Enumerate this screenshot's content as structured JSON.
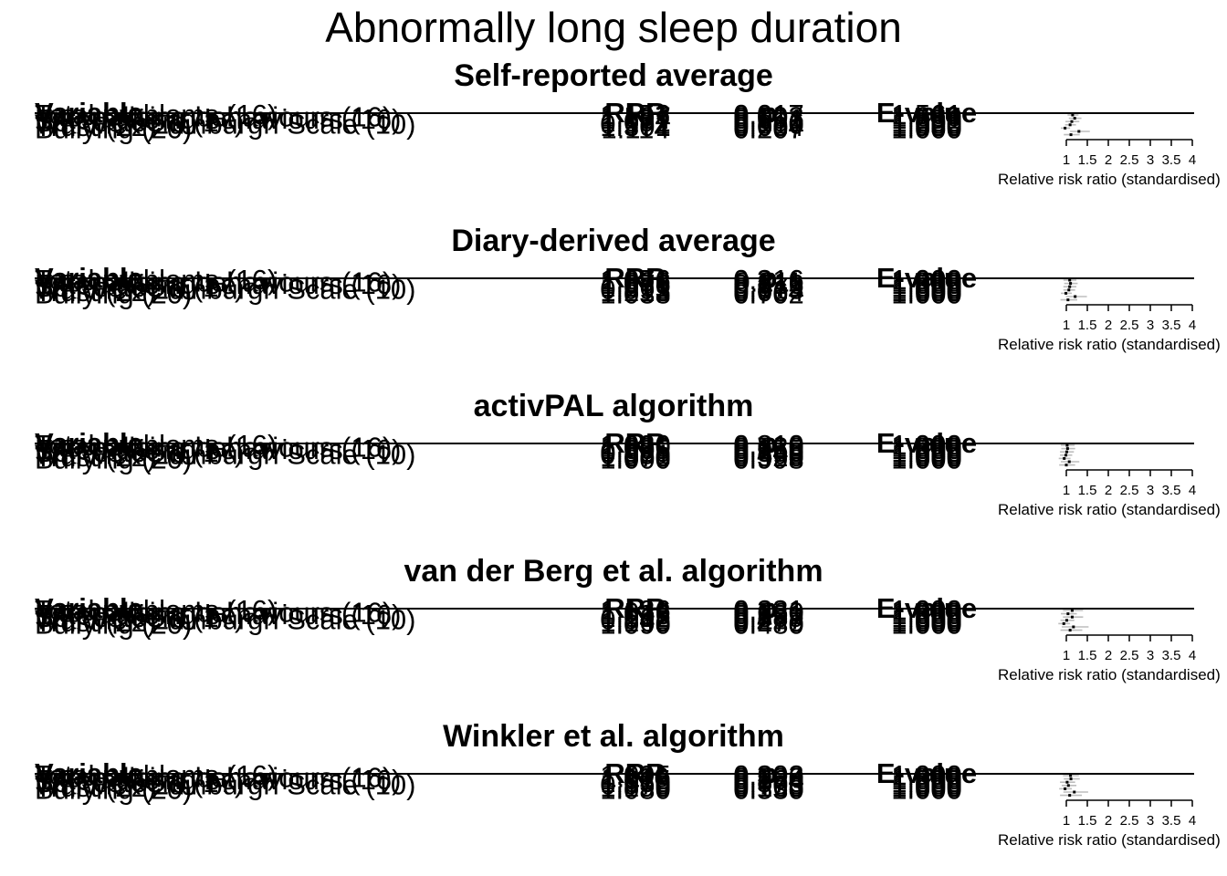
{
  "title": "Abnormally long sleep duration",
  "headers": {
    "variable": "Variable",
    "rrr": "RRR",
    "p": "p",
    "evalue": "E-value"
  },
  "axis": {
    "ticks": [
      "1",
      "1.5",
      "2",
      "2.5",
      "3",
      "3.5",
      "4"
    ],
    "xlabel": "Relative risk ratio (standardised)"
  },
  "chart_data": [
    {
      "type": "forest",
      "title": "Self-reported average",
      "xlabel": "Relative risk ratio (standardised)",
      "xlim": [
        1,
        4
      ],
      "rows": [
        {
          "variable": "Total problems (16)",
          "rrr": "1.152",
          "p": "0.017",
          "evalue": "1.561",
          "est": 1.15,
          "lo": 1.03,
          "hi": 1.29
        },
        {
          "variable": "Internalising behaviours (16)",
          "rrr": "1.197",
          "p": "0.003",
          "evalue": "1.680",
          "est": 1.2,
          "lo": 1.06,
          "hi": 1.36
        },
        {
          "variable": "Externalising behaviours (16)",
          "rrr": "1.134",
          "p": "0.091",
          "evalue": "1.291",
          "est": 1.13,
          "lo": 0.98,
          "hi": 1.31
        },
        {
          "variable": "Self-esteem (17)",
          "rrr": "1.092",
          "p": "0.136",
          "evalue": "1.000",
          "est": 1.09,
          "lo": 0.97,
          "hi": 1.23
        },
        {
          "variable": "Warwick-Edinburgh Scale (10)",
          "rrr": "0.972",
          "p": "0.610",
          "evalue": "1.000",
          "est": 0.97,
          "lo": 0.87,
          "hi": 1.09
        },
        {
          "variable": "Trust (22)",
          "rrr": "1.301",
          "p": "0.004",
          "evalue": "1.930",
          "est": 1.3,
          "lo": 1.09,
          "hi": 1.56
        },
        {
          "variable": "Bullying (20)",
          "rrr": "1.114",
          "p": "0.207",
          "evalue": "1.000",
          "est": 1.11,
          "lo": 0.94,
          "hi": 1.32
        }
      ]
    },
    {
      "type": "forest",
      "title": "Diary-derived average",
      "xlabel": "Relative risk ratio (standardised)",
      "xlim": [
        1,
        4
      ],
      "rows": [
        {
          "variable": "Total problems (16)",
          "rrr": "1.076",
          "p": "0.316",
          "evalue": "1.000",
          "est": 1.08,
          "lo": 0.93,
          "hi": 1.24
        },
        {
          "variable": "Internalising behaviours (16)",
          "rrr": "1.098",
          "p": "0.211",
          "evalue": "1.000",
          "est": 1.1,
          "lo": 0.95,
          "hi": 1.27
        },
        {
          "variable": "Externalising behaviours (16)",
          "rrr": "1.076",
          "p": "0.316",
          "evalue": "1.000",
          "est": 1.08,
          "lo": 0.93,
          "hi": 1.24
        },
        {
          "variable": "Self-esteem (17)",
          "rrr": "1.061",
          "p": "0.372",
          "evalue": "1.000",
          "est": 1.06,
          "lo": 0.93,
          "hi": 1.21
        },
        {
          "variable": "Warwick-Edinburgh Scale (10)",
          "rrr": "0.993",
          "p": "0.913",
          "evalue": "1.000",
          "est": 0.99,
          "lo": 0.87,
          "hi": 1.13
        },
        {
          "variable": "Trust (22)",
          "rrr": "1.213",
          "p": "0.064",
          "evalue": "1.000",
          "est": 1.21,
          "lo": 0.99,
          "hi": 1.49
        },
        {
          "variable": "Bullying (20)",
          "rrr": "1.038",
          "p": "0.702",
          "evalue": "1.000",
          "est": 1.04,
          "lo": 0.86,
          "hi": 1.26
        }
      ]
    },
    {
      "type": "forest",
      "title": "activPAL algorithm",
      "xlabel": "Relative risk ratio (standardised)",
      "xlim": [
        1,
        4
      ],
      "rows": [
        {
          "variable": "Total problems (16)",
          "rrr": "1.020",
          "p": "0.810",
          "evalue": "1.000",
          "est": 1.02,
          "lo": 0.87,
          "hi": 1.2
        },
        {
          "variable": "Internalising behaviours (16)",
          "rrr": "1.030",
          "p": "0.720",
          "evalue": "1.000",
          "est": 1.03,
          "lo": 0.88,
          "hi": 1.21
        },
        {
          "variable": "Externalising behaviours (16)",
          "rrr": "1.005",
          "p": "0.955",
          "evalue": "1.000",
          "est": 1.01,
          "lo": 0.85,
          "hi": 1.18
        },
        {
          "variable": "Self-esteem (17)",
          "rrr": "0.985",
          "p": "0.840",
          "evalue": "1.000",
          "est": 0.99,
          "lo": 0.85,
          "hi": 1.14
        },
        {
          "variable": "Warwick-Edinburgh Scale (10)",
          "rrr": "0.951",
          "p": "0.493",
          "evalue": "1.000",
          "est": 0.95,
          "lo": 0.82,
          "hi": 1.1
        },
        {
          "variable": "Trust (22)",
          "rrr": "1.070",
          "p": "0.520",
          "evalue": "1.000",
          "est": 1.07,
          "lo": 0.87,
          "hi": 1.31
        },
        {
          "variable": "Bullying (20)",
          "rrr": "1.000",
          "p": "0.998",
          "evalue": "1.000",
          "est": 1.0,
          "lo": 0.83,
          "hi": 1.21
        }
      ]
    },
    {
      "type": "forest",
      "title": "van der Berg et al. algorithm",
      "xlabel": "Relative risk ratio (standardised)",
      "xlim": [
        1,
        4
      ],
      "rows": [
        {
          "variable": "Total problems (16)",
          "rrr": "1.136",
          "p": "0.231",
          "evalue": "1.000",
          "est": 1.14,
          "lo": 0.92,
          "hi": 1.4
        },
        {
          "variable": "Internalising behaviours (16)",
          "rrr": "1.042",
          "p": "0.660",
          "evalue": "1.000",
          "est": 1.04,
          "lo": 0.87,
          "hi": 1.25
        },
        {
          "variable": "Externalising behaviours (16)",
          "rrr": "1.136",
          "p": "0.231",
          "evalue": "1.000",
          "est": 1.14,
          "lo": 0.92,
          "hi": 1.4
        },
        {
          "variable": "Self-esteem (17)",
          "rrr": "1.012",
          "p": "0.889",
          "evalue": "1.000",
          "est": 1.01,
          "lo": 0.86,
          "hi": 1.19
        },
        {
          "variable": "Warwick-Edinburgh Scale (10)",
          "rrr": "0.942",
          "p": "0.427",
          "evalue": "1.000",
          "est": 0.94,
          "lo": 0.81,
          "hi": 1.09
        },
        {
          "variable": "Trust (22)",
          "rrr": "1.165",
          "p": "0.275",
          "evalue": "1.000",
          "est": 1.17,
          "lo": 0.89,
          "hi": 1.53
        },
        {
          "variable": "Bullying (20)",
          "rrr": "1.090",
          "p": "0.480",
          "evalue": "1.000",
          "est": 1.09,
          "lo": 0.86,
          "hi": 1.38
        }
      ]
    },
    {
      "type": "forest",
      "title": "Winkler et al. algorithm",
      "xlabel": "Relative risk ratio (standardised)",
      "xlim": [
        1,
        4
      ],
      "rows": [
        {
          "variable": "Total problems (16)",
          "rrr": "1.095",
          "p": "0.302",
          "evalue": "1.000",
          "est": 1.1,
          "lo": 0.92,
          "hi": 1.3
        },
        {
          "variable": "Internalising behaviours (16)",
          "rrr": "1.110",
          "p": "0.230",
          "evalue": "1.000",
          "est": 1.11,
          "lo": 0.94,
          "hi": 1.32
        },
        {
          "variable": "Externalising behaviours (16)",
          "rrr": "1.015",
          "p": "0.864",
          "evalue": "1.000",
          "est": 1.02,
          "lo": 0.85,
          "hi": 1.21
        },
        {
          "variable": "Self-esteem (17)",
          "rrr": "1.050",
          "p": "0.570",
          "evalue": "1.000",
          "est": 1.05,
          "lo": 0.89,
          "hi": 1.24
        },
        {
          "variable": "Warwick-Edinburgh Scale (10)",
          "rrr": "0.970",
          "p": "0.703",
          "evalue": "1.000",
          "est": 0.97,
          "lo": 0.83,
          "hi": 1.13
        },
        {
          "variable": "Trust (22)",
          "rrr": "1.190",
          "p": "0.163",
          "evalue": "1.000",
          "est": 1.19,
          "lo": 0.93,
          "hi": 1.52
        },
        {
          "variable": "Bullying (20)",
          "rrr": "1.080",
          "p": "0.530",
          "evalue": "1.000",
          "est": 1.08,
          "lo": 0.85,
          "hi": 1.37
        }
      ]
    }
  ]
}
